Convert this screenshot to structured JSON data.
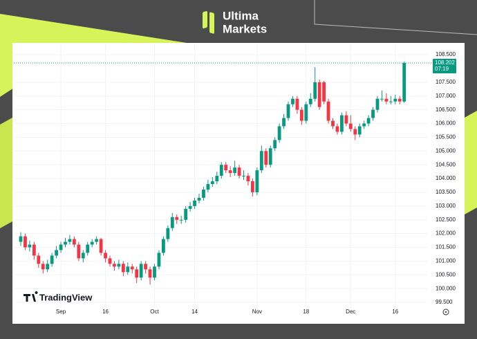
{
  "brand": {
    "line1": "Ultima",
    "line2": "Markets"
  },
  "chart_data": {
    "type": "candlestick",
    "watermark": "TradingView",
    "countdown": "07:19",
    "up_color": "#089981",
    "down_color": "#f23645",
    "grid": true,
    "ylim": [
      99.3,
      108.88
    ],
    "yticks": [
      {
        "value": 99.5,
        "label": "99.500"
      },
      {
        "value": 100,
        "label": "100.000"
      },
      {
        "value": 100.5,
        "label": "100.500"
      },
      {
        "value": 101,
        "label": "101.000"
      },
      {
        "value": 101.5,
        "label": "101.500"
      },
      {
        "value": 102,
        "label": "102.000"
      },
      {
        "value": 102.5,
        "label": "102.500"
      },
      {
        "value": 103,
        "label": "103.000"
      },
      {
        "value": 103.5,
        "label": "103.500"
      },
      {
        "value": 104,
        "label": "104.000"
      },
      {
        "value": 104.5,
        "label": "104.500"
      },
      {
        "value": 105,
        "label": "105.000"
      },
      {
        "value": 105.5,
        "label": "105.500"
      },
      {
        "value": 106,
        "label": "106.000"
      },
      {
        "value": 106.5,
        "label": "106.500"
      },
      {
        "value": 107,
        "label": "107.000"
      },
      {
        "value": 107.5,
        "label": "107.500"
      },
      {
        "value": 108.5,
        "label": "108.500"
      }
    ],
    "categories": [
      null,
      null,
      null,
      null,
      null,
      null,
      null,
      null,
      null,
      "Sep",
      null,
      null,
      null,
      null,
      null,
      null,
      null,
      null,
      null,
      "16",
      null,
      null,
      null,
      null,
      null,
      null,
      null,
      null,
      null,
      null,
      "Oct",
      null,
      null,
      null,
      null,
      null,
      null,
      null,
      null,
      "14",
      null,
      null,
      null,
      null,
      null,
      null,
      null,
      null,
      null,
      null,
      null,
      null,
      null,
      "Nov",
      null,
      null,
      null,
      null,
      null,
      null,
      null,
      null,
      null,
      null,
      "18",
      null,
      null,
      null,
      null,
      null,
      null,
      null,
      null,
      null,
      "Dec",
      null,
      null,
      null,
      null,
      null,
      null,
      null,
      null,
      null,
      "16",
      null,
      null
    ],
    "open": [
      101.7,
      101.9,
      101.5,
      101.6,
      101.2,
      100.9,
      100.7,
      100.9,
      101.2,
      101.4,
      101.6,
      101.7,
      101.8,
      101.6,
      101.1,
      101.3,
      101.6,
      101.7,
      101.8,
      101.3,
      101.1,
      100.9,
      100.8,
      100.9,
      100.6,
      100.8,
      100.7,
      100.4,
      100.9,
      100.7,
      100.4,
      100.8,
      101.3,
      101.8,
      102.2,
      102.6,
      102.5,
      102.5,
      102.9,
      103.0,
      103.2,
      103.3,
      103.6,
      103.8,
      103.9,
      104.1,
      104.5,
      104.3,
      104.2,
      104.4,
      104.1,
      104.1,
      103.9,
      103.5,
      104.3,
      105.0,
      104.5,
      105.1,
      105.4,
      105.9,
      106.2,
      106.7,
      106.9,
      106.5,
      106.1,
      106.7,
      106.9,
      107.5,
      107.5,
      106.8,
      106.1,
      105.9,
      105.7,
      106.3,
      106.0,
      105.8,
      105.6,
      105.9,
      106.0,
      106.2,
      106.5,
      106.9,
      106.9,
      106.8,
      106.8,
      106.9,
      106.8
    ],
    "high": [
      102.05,
      102.0,
      101.75,
      101.7,
      101.3,
      101.0,
      101.05,
      101.3,
      101.55,
      101.7,
      101.85,
      101.95,
      101.9,
      101.7,
      101.4,
      101.7,
      101.8,
      101.9,
      101.85,
      101.4,
      101.2,
      101.0,
      101.05,
      101.0,
      100.95,
      100.9,
      100.8,
      101.0,
      101.0,
      100.8,
      100.9,
      101.4,
      101.9,
      102.3,
      102.75,
      102.7,
      102.65,
      103.0,
      103.15,
      103.3,
      103.45,
      103.7,
      103.95,
      104.05,
      104.25,
      104.6,
      104.6,
      104.45,
      104.65,
      104.5,
      104.3,
      104.2,
      104.0,
      104.4,
      105.2,
      105.1,
      105.2,
      105.5,
      106.0,
      106.35,
      106.8,
      107.0,
      107.0,
      106.6,
      106.8,
      107.1,
      108.05,
      107.6,
      107.55,
      106.9,
      106.2,
      106.0,
      106.4,
      106.45,
      106.3,
      105.9,
      106.0,
      106.1,
      106.3,
      106.6,
      107.0,
      107.2,
      107.1,
      107.0,
      107.05,
      107.0,
      108.25
    ],
    "low": [
      101.55,
      101.4,
      101.35,
      101.05,
      100.75,
      100.55,
      100.6,
      100.8,
      101.1,
      101.3,
      101.5,
      101.6,
      101.5,
      101.0,
      100.95,
      101.2,
      101.5,
      101.6,
      101.2,
      100.95,
      100.8,
      100.65,
      100.7,
      100.45,
      100.5,
      100.55,
      100.2,
      100.3,
      100.55,
      100.15,
      100.3,
      100.7,
      101.2,
      101.7,
      102.1,
      102.35,
      102.35,
      102.4,
      102.8,
      102.9,
      103.1,
      103.2,
      103.5,
      103.7,
      103.8,
      104.0,
      104.2,
      104.05,
      104.1,
      104.0,
      103.95,
      103.75,
      103.35,
      103.4,
      104.2,
      104.4,
      104.4,
      105.0,
      105.3,
      105.8,
      106.1,
      106.6,
      106.35,
      105.95,
      106.0,
      106.6,
      106.8,
      106.5,
      106.7,
      106.0,
      105.8,
      105.6,
      105.6,
      105.9,
      105.7,
      105.4,
      105.5,
      105.8,
      105.9,
      106.1,
      106.4,
      106.8,
      106.7,
      106.7,
      106.7,
      106.7,
      106.75
    ],
    "close": [
      101.9,
      101.5,
      101.6,
      101.2,
      100.9,
      100.7,
      100.9,
      101.2,
      101.4,
      101.6,
      101.7,
      101.8,
      101.6,
      101.1,
      101.3,
      101.6,
      101.7,
      101.8,
      101.3,
      101.1,
      100.9,
      100.8,
      100.9,
      100.6,
      100.8,
      100.7,
      100.4,
      100.9,
      100.7,
      100.4,
      100.8,
      101.3,
      101.8,
      102.2,
      102.6,
      102.5,
      102.5,
      102.9,
      103.0,
      103.2,
      103.3,
      103.6,
      103.8,
      103.9,
      104.1,
      104.5,
      104.3,
      104.2,
      104.4,
      104.1,
      104.1,
      103.9,
      103.5,
      104.3,
      105.0,
      104.5,
      105.1,
      105.4,
      105.9,
      106.2,
      106.7,
      106.9,
      106.5,
      106.1,
      106.7,
      106.9,
      107.5,
      106.6,
      106.8,
      106.1,
      105.9,
      105.7,
      106.3,
      106.0,
      105.8,
      105.6,
      105.9,
      106.0,
      106.2,
      106.5,
      106.9,
      106.9,
      106.8,
      106.8,
      106.9,
      106.8,
      108.202
    ]
  }
}
